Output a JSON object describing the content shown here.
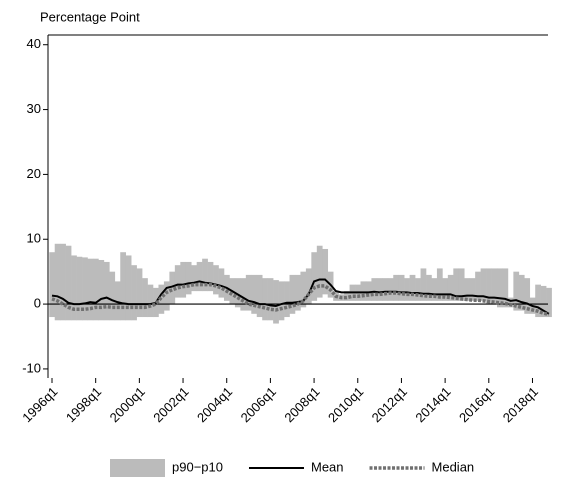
{
  "chart_data": {
    "type": "line",
    "y_label": "Percentage Point",
    "categories": [
      "1996q1",
      null,
      null,
      null,
      null,
      null,
      null,
      null,
      "1998q1",
      null,
      null,
      null,
      null,
      null,
      null,
      null,
      "2000q1",
      null,
      null,
      null,
      null,
      null,
      null,
      null,
      "2002q1",
      null,
      null,
      null,
      null,
      null,
      null,
      null,
      "2004q1",
      null,
      null,
      null,
      null,
      null,
      null,
      null,
      "2006q1",
      null,
      null,
      null,
      null,
      null,
      null,
      null,
      "2008q1",
      null,
      null,
      null,
      null,
      null,
      null,
      null,
      "2010q1",
      null,
      null,
      null,
      null,
      null,
      null,
      null,
      "2012q1",
      null,
      null,
      null,
      null,
      null,
      null,
      null,
      "2014q1",
      null,
      null,
      null,
      null,
      null,
      null,
      null,
      "2016q1",
      null,
      null,
      null,
      null,
      null,
      null,
      null,
      "2018q1",
      null,
      null,
      null
    ],
    "ylim": [
      -11.4,
      41.5
    ],
    "yticks": [
      -10,
      0,
      10,
      20,
      30,
      40
    ],
    "series": [
      {
        "name": "p90−p10",
        "type": "band",
        "color": "#bbbbbb",
        "high": [
          8,
          9.3,
          9.3,
          9,
          7.5,
          7.3,
          7.2,
          7,
          7,
          6.8,
          6.5,
          5,
          3.5,
          8,
          7.5,
          6,
          5.5,
          4,
          3,
          2.5,
          3,
          3.5,
          5,
          6,
          6.5,
          6.5,
          6,
          6.5,
          7,
          6.5,
          6,
          5.5,
          4.5,
          4,
          4,
          4,
          4.5,
          4.5,
          4.5,
          4,
          4,
          3.7,
          3.5,
          3.5,
          4.5,
          4.5,
          5,
          5.5,
          8,
          9,
          8.5,
          5,
          2,
          1.5,
          2,
          3,
          3,
          3.5,
          3.5,
          4,
          4,
          4,
          4,
          4.5,
          4.5,
          4,
          4.5,
          4,
          5.5,
          4.5,
          4,
          5.5,
          4,
          4.5,
          5.5,
          5.5,
          4,
          4,
          5,
          5.5,
          5.5,
          5.5,
          5.5,
          5.5,
          1,
          5,
          4.5,
          4,
          1,
          3,
          2.8,
          2.5
        ],
        "low": [
          -2,
          -2.5,
          -2.5,
          -2.5,
          -2.5,
          -2.5,
          -2.5,
          -2.5,
          -2.5,
          -2.5,
          -2.5,
          -2.5,
          -2.5,
          -2.5,
          -2.5,
          -2.5,
          -2,
          -2,
          -2,
          -2,
          -1.5,
          -1,
          0,
          1,
          1,
          1.5,
          2,
          2,
          2,
          2,
          1.5,
          1,
          0.5,
          0,
          -0.5,
          -1,
          -1,
          -1.5,
          -2,
          -2.5,
          -2.5,
          -3,
          -2.5,
          -2,
          -1.5,
          -1,
          -0.5,
          0,
          0.5,
          1,
          1.5,
          1,
          0.5,
          0.5,
          0.5,
          0.5,
          0.5,
          0.5,
          0.5,
          0.5,
          0.5,
          0.5,
          0.5,
          0.5,
          0.5,
          0.5,
          0.5,
          0.5,
          0.5,
          0.5,
          0.5,
          0.5,
          0.5,
          0.5,
          0.5,
          0.5,
          0.5,
          0.5,
          0.5,
          0.5,
          0,
          0,
          -0.5,
          -0.5,
          -0.5,
          -1,
          -1,
          -1.5,
          -1.5,
          -2,
          -2,
          -2
        ]
      },
      {
        "name": "Mean",
        "type": "line",
        "color": "#000000",
        "dash": false,
        "values": [
          1.3,
          1.2,
          0.8,
          0.2,
          0,
          0,
          0.1,
          0.3,
          0.2,
          0.8,
          1,
          0.6,
          0.3,
          0.1,
          0,
          0,
          0,
          0,
          0,
          0.2,
          1.5,
          2.5,
          2.7,
          3,
          3,
          3.2,
          3.3,
          3.5,
          3.3,
          3.2,
          3,
          2.8,
          2.5,
          2,
          1.5,
          1,
          0.5,
          0.3,
          0,
          0,
          -0.2,
          -0.3,
          0,
          0.2,
          0.2,
          0.3,
          0.5,
          1.5,
          3.5,
          3.8,
          3.8,
          3,
          2,
          1.8,
          1.8,
          1.8,
          1.8,
          1.8,
          1.8,
          1.9,
          1.8,
          1.9,
          1.9,
          1.9,
          1.8,
          1.8,
          1.7,
          1.7,
          1.6,
          1.6,
          1.5,
          1.5,
          1.5,
          1.5,
          1.2,
          1.2,
          1.3,
          1.3,
          1.2,
          1.2,
          1,
          1,
          0.9,
          0.8,
          0.5,
          0.6,
          0.3,
          0.1,
          -0.3,
          -0.5,
          -1,
          -1.5
        ]
      },
      {
        "name": "Median",
        "type": "line",
        "color": "#707070",
        "dash": true,
        "values": [
          0.8,
          0.5,
          0,
          -0.5,
          -0.8,
          -0.8,
          -0.8,
          -0.7,
          -0.5,
          -0.5,
          -0.4,
          -0.5,
          -0.5,
          -0.5,
          -0.5,
          -0.5,
          -0.5,
          -0.5,
          -0.3,
          0,
          1,
          1.8,
          2.2,
          2.5,
          2.7,
          2.8,
          3,
          3,
          3,
          3,
          2.8,
          2.5,
          2,
          1.5,
          1,
          0.5,
          0,
          -0.2,
          -0.4,
          -0.6,
          -0.8,
          -0.9,
          -0.7,
          -0.5,
          -0.3,
          0,
          0.5,
          1.5,
          2.5,
          2.8,
          2.8,
          2.2,
          1.2,
          1,
          1,
          1.2,
          1.2,
          1.3,
          1.4,
          1.5,
          1.5,
          1.6,
          1.7,
          1.7,
          1.6,
          1.5,
          1.5,
          1.4,
          1.3,
          1.2,
          1.2,
          1.1,
          1.1,
          1,
          0.9,
          0.8,
          0.7,
          0.6,
          0.6,
          0.5,
          0.4,
          0.3,
          0.2,
          0.1,
          -0.1,
          -0.3,
          -0.5,
          -0.7,
          -0.9,
          -1.1,
          -1.4,
          -1.6
        ]
      }
    ]
  }
}
